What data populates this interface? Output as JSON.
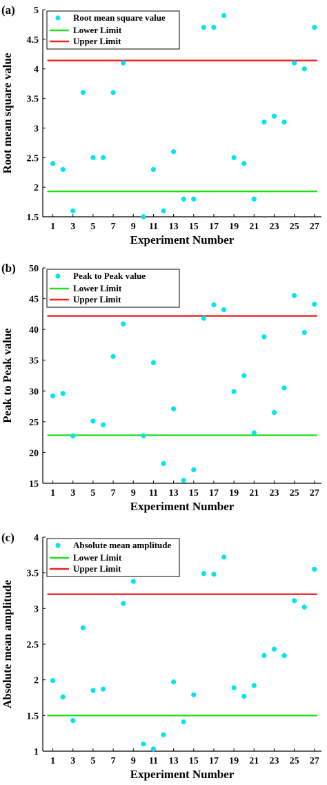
{
  "chart_data": [
    {
      "type": "scatter",
      "panel_label": "(a)",
      "xlabel": "Experiment Number",
      "ylabel": "Root mean square value",
      "xlim": [
        0,
        27.7
      ],
      "ylim": [
        1.5,
        5
      ],
      "xticks": [
        1,
        3,
        5,
        7,
        9,
        11,
        13,
        15,
        17,
        19,
        21,
        23,
        25,
        27
      ],
      "yticks": [
        1.5,
        2,
        2.5,
        3,
        3.5,
        4,
        4.5,
        5
      ],
      "ytick_labels": [
        "1.5",
        "2",
        "2.5",
        "3",
        "3.5",
        "4",
        "4.5",
        "5"
      ],
      "series": [
        {
          "name": "Root mean square value",
          "color": "#00e5ee",
          "x": [
            1,
            2,
            3,
            4,
            5,
            6,
            7,
            8,
            10,
            11,
            12,
            13,
            14,
            15,
            16,
            17,
            18,
            19,
            20,
            21,
            22,
            23,
            24,
            25,
            26,
            27
          ],
          "y": [
            2.4,
            2.3,
            1.6,
            3.6,
            2.5,
            2.5,
            3.6,
            4.1,
            1.5,
            2.3,
            1.6,
            2.6,
            1.8,
            1.8,
            4.7,
            4.7,
            4.9,
            2.5,
            2.4,
            1.8,
            3.1,
            3.2,
            3.1,
            4.1,
            4.0,
            4.7
          ]
        }
      ],
      "lines": [
        {
          "name": "Lower Limit",
          "color": "#22dd22",
          "y": 1.93
        },
        {
          "name": "Upper Limit",
          "color": "#ee2222",
          "y": 4.14
        }
      ],
      "legend": "top-left"
    },
    {
      "type": "scatter",
      "panel_label": "(b)",
      "xlabel": "Experiment Number",
      "ylabel": "Peak to Peak value",
      "xlim": [
        0,
        27.7
      ],
      "ylim": [
        15,
        50
      ],
      "xticks": [
        1,
        3,
        5,
        7,
        9,
        11,
        13,
        15,
        17,
        19,
        21,
        23,
        25,
        27
      ],
      "yticks": [
        15,
        20,
        25,
        30,
        35,
        40,
        45,
        50
      ],
      "ytick_labels": [
        "15",
        "20",
        "25",
        "30",
        "35",
        "40",
        "45",
        "50"
      ],
      "series": [
        {
          "name": "Peak to Peak value",
          "color": "#00e5ee",
          "x": [
            1,
            2,
            3,
            5,
            6,
            7,
            8,
            10,
            11,
            12,
            13,
            14,
            15,
            16,
            17,
            18,
            19,
            20,
            21,
            22,
            23,
            24,
            25,
            26,
            27
          ],
          "y": [
            29.2,
            29.6,
            22.7,
            25.1,
            24.5,
            35.6,
            40.9,
            22.7,
            34.6,
            18.2,
            27.1,
            15.5,
            17.2,
            41.8,
            44.0,
            43.2,
            29.9,
            32.5,
            23.2,
            38.8,
            26.5,
            30.5,
            45.5,
            39.5,
            44.1
          ]
        }
      ],
      "lines": [
        {
          "name": "Lower Limit",
          "color": "#22dd22",
          "y": 22.8
        },
        {
          "name": "Upper Limit",
          "color": "#ee2222",
          "y": 42.2
        }
      ],
      "legend": "top-left"
    },
    {
      "type": "scatter",
      "panel_label": "(c)",
      "xlabel": "Experiment Number",
      "ylabel": "Absolute mean amplitude",
      "xlim": [
        0,
        27.7
      ],
      "ylim": [
        1,
        4
      ],
      "xticks": [
        1,
        3,
        5,
        7,
        9,
        11,
        13,
        15,
        17,
        19,
        21,
        23,
        25,
        27
      ],
      "yticks": [
        1,
        1.5,
        2,
        2.5,
        3,
        3.5,
        4
      ],
      "ytick_labels": [
        "1",
        "1.5",
        "2",
        "2.5",
        "3",
        "3.5",
        "4"
      ],
      "series": [
        {
          "name": "Absolute mean amplitude",
          "color": "#00e5ee",
          "x": [
            1,
            2,
            3,
            4,
            5,
            6,
            8,
            9,
            10,
            11,
            12,
            13,
            14,
            15,
            16,
            17,
            18,
            19,
            20,
            21,
            22,
            23,
            24,
            25,
            26,
            27
          ],
          "y": [
            1.99,
            1.76,
            1.43,
            2.73,
            1.85,
            1.87,
            3.07,
            3.38,
            1.1,
            1.03,
            1.23,
            1.97,
            1.41,
            1.79,
            3.49,
            3.48,
            3.72,
            1.89,
            1.77,
            1.92,
            2.34,
            2.43,
            2.34,
            3.11,
            3.02,
            3.55
          ]
        }
      ],
      "lines": [
        {
          "name": "Lower Limit",
          "color": "#22dd22",
          "y": 1.5
        },
        {
          "name": "Upper Limit",
          "color": "#ee2222",
          "y": 3.2
        }
      ],
      "legend": "top-left"
    }
  ]
}
